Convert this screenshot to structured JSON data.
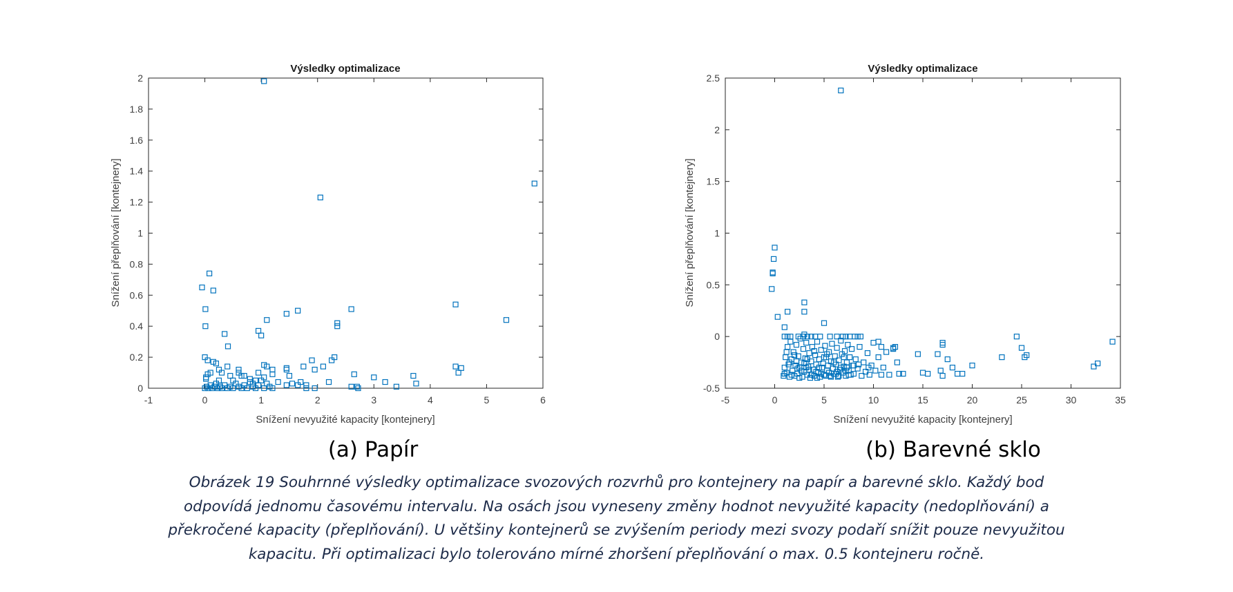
{
  "marker_color": "#0072BD",
  "chart_data": [
    {
      "type": "scatter",
      "title": "Výsledky optimalizace",
      "xlabel": "Snížení nevyužité kapacity [kontejnery]",
      "ylabel": "Snížení přeplňování [kontejnery]",
      "xlim": [
        -1,
        6
      ],
      "ylim": [
        0,
        2
      ],
      "xticks": [
        "-1",
        "0",
        "1",
        "2",
        "3",
        "4",
        "5",
        "6"
      ],
      "yticks": [
        "0",
        "0.2",
        "0.4",
        "0.6",
        "0.8",
        "1",
        "1.2",
        "1.4",
        "1.6",
        "1.8",
        "2"
      ],
      "marker": "square",
      "grid": false,
      "points": [
        [
          1.05,
          1.98
        ],
        [
          2.05,
          1.23
        ],
        [
          5.85,
          1.32
        ],
        [
          -0.05,
          0.65
        ],
        [
          0.08,
          0.74
        ],
        [
          0.15,
          0.63
        ],
        [
          0.01,
          0.51
        ],
        [
          0.01,
          0.4
        ],
        [
          0.35,
          0.35
        ],
        [
          0.41,
          0.27
        ],
        [
          0.95,
          0.37
        ],
        [
          1.0,
          0.34
        ],
        [
          1.1,
          0.44
        ],
        [
          1.45,
          0.48
        ],
        [
          1.65,
          0.5
        ],
        [
          2.35,
          0.42
        ],
        [
          2.35,
          0.4
        ],
        [
          2.6,
          0.51
        ],
        [
          4.45,
          0.54
        ],
        [
          5.35,
          0.44
        ],
        [
          0,
          0.2
        ],
        [
          0.05,
          0.18
        ],
        [
          0.15,
          0.17
        ],
        [
          0.2,
          0.16
        ],
        [
          0.25,
          0.12
        ],
        [
          0.4,
          0.14
        ],
        [
          0.45,
          0.08
        ],
        [
          0.6,
          0.12
        ],
        [
          0.6,
          0.1
        ],
        [
          0.7,
          0.08
        ],
        [
          0.95,
          0.1
        ],
        [
          1.05,
          0.15
        ],
        [
          1.1,
          0.14
        ],
        [
          1.2,
          0.12
        ],
        [
          1.2,
          0.09
        ],
        [
          1.45,
          0.13
        ],
        [
          1.45,
          0.12
        ],
        [
          1.5,
          0.08
        ],
        [
          1.75,
          0.14
        ],
        [
          1.9,
          0.18
        ],
        [
          1.95,
          0.12
        ],
        [
          2.1,
          0.14
        ],
        [
          2.25,
          0.18
        ],
        [
          2.3,
          0.2
        ],
        [
          2.2,
          0.04
        ],
        [
          2.65,
          0.09
        ],
        [
          2.6,
          0.01
        ],
        [
          2.7,
          0.01
        ],
        [
          2.72,
          0
        ],
        [
          3.0,
          0.07
        ],
        [
          3.2,
          0.04
        ],
        [
          3.4,
          0.01
        ],
        [
          3.7,
          0.08
        ],
        [
          3.75,
          0.03
        ],
        [
          4.45,
          0.14
        ],
        [
          4.55,
          0.13
        ],
        [
          4.5,
          0.1
        ],
        [
          0,
          0
        ],
        [
          0.03,
          0.01
        ],
        [
          0.06,
          0
        ],
        [
          0.1,
          0.02
        ],
        [
          0.13,
          0
        ],
        [
          0.17,
          0.01
        ],
        [
          0.2,
          0.03
        ],
        [
          0.23,
          0
        ],
        [
          0.27,
          0.01
        ],
        [
          0.3,
          0
        ],
        [
          0.35,
          0.02
        ],
        [
          0.4,
          0
        ],
        [
          0.45,
          0.01
        ],
        [
          0.5,
          0
        ],
        [
          0.55,
          0.03
        ],
        [
          0.6,
          0.01
        ],
        [
          0.65,
          0
        ],
        [
          0.7,
          0.02
        ],
        [
          0.75,
          0
        ],
        [
          0.8,
          0.04
        ],
        [
          0.85,
          0.01
        ],
        [
          0.9,
          0
        ],
        [
          0.95,
          0.02
        ],
        [
          1,
          0.05
        ],
        [
          1.05,
          0
        ],
        [
          1.1,
          0.03
        ],
        [
          1.15,
          0.01
        ],
        [
          1.2,
          0
        ],
        [
          1.3,
          0.04
        ],
        [
          1.45,
          0.02
        ],
        [
          1.55,
          0.03
        ],
        [
          1.65,
          0.02
        ],
        [
          1.7,
          0.04
        ],
        [
          1.8,
          0
        ],
        [
          1.8,
          0.02
        ],
        [
          1.95,
          0
        ],
        [
          0.02,
          0.06
        ],
        [
          0.05,
          0.09
        ],
        [
          0.1,
          0.1
        ],
        [
          0.02,
          0.07
        ],
        [
          0.3,
          0.1
        ],
        [
          0.5,
          0.05
        ],
        [
          0.8,
          0.06
        ],
        [
          0.9,
          0.05
        ],
        [
          1.05,
          0.07
        ],
        [
          0.25,
          0.05
        ],
        [
          0.65,
          0.08
        ],
        [
          0.85,
          0.03
        ]
      ]
    },
    {
      "type": "scatter",
      "title": "Výsledky optimalizace",
      "xlabel": "Snížení nevyužité kapacity [kontejnery]",
      "ylabel": "Snížení přeplňování [kontejnery]",
      "xlim": [
        -5,
        35
      ],
      "ylim": [
        -0.5,
        2.5
      ],
      "xticks": [
        "-5",
        "0",
        "5",
        "10",
        "15",
        "20",
        "25",
        "30",
        "35"
      ],
      "yticks": [
        "-0.5",
        "0",
        "0.5",
        "1",
        "1.5",
        "2",
        "2.5"
      ],
      "marker": "square",
      "grid": false,
      "points": [
        [
          6.7,
          2.38
        ],
        [
          0,
          0.86
        ],
        [
          -0.1,
          0.75
        ],
        [
          -0.2,
          0.62
        ],
        [
          -0.2,
          0.61
        ],
        [
          -0.3,
          0.46
        ],
        [
          0.3,
          0.19
        ],
        [
          1.3,
          0.24
        ],
        [
          3,
          0.33
        ],
        [
          3,
          0.24
        ],
        [
          5,
          0.13
        ],
        [
          1,
          0.09
        ],
        [
          0.9,
          -0.38
        ],
        [
          1,
          -0.3
        ],
        [
          1.1,
          -0.2
        ],
        [
          1.2,
          -0.35
        ],
        [
          1.3,
          -0.1
        ],
        [
          1.4,
          -0.27
        ],
        [
          1.5,
          -0.39
        ],
        [
          1.6,
          -0.05
        ],
        [
          1.7,
          -0.22
        ],
        [
          1.8,
          -0.33
        ],
        [
          1.9,
          -0.15
        ],
        [
          2,
          -0.38
        ],
        [
          2.1,
          -0.28
        ],
        [
          2.2,
          -0.08
        ],
        [
          2.3,
          -0.36
        ],
        [
          2.4,
          -0.19
        ],
        [
          2.5,
          -0.3
        ],
        [
          2.6,
          -0.02
        ],
        [
          2.7,
          -0.25
        ],
        [
          2.8,
          -0.39
        ],
        [
          2.9,
          -0.12
        ],
        [
          3,
          -0.34
        ],
        [
          3.1,
          -0.21
        ],
        [
          3.2,
          -0.06
        ],
        [
          3.3,
          -0.37
        ],
        [
          3.4,
          -0.29
        ],
        [
          3.5,
          -0.16
        ],
        [
          3.6,
          -0.4
        ],
        [
          3.7,
          -0.24
        ],
        [
          3.8,
          -0.1
        ],
        [
          3.9,
          -0.32
        ],
        [
          4,
          -0.38
        ],
        [
          4.1,
          -0.18
        ],
        [
          4.2,
          -0.27
        ],
        [
          4.3,
          -0.05
        ],
        [
          4.4,
          -0.35
        ],
        [
          4.5,
          -0.22
        ],
        [
          4.6,
          -0.39
        ],
        [
          4.7,
          -0.13
        ],
        [
          4.8,
          -0.3
        ],
        [
          4.9,
          -0.26
        ],
        [
          5,
          -0.37
        ],
        [
          5.1,
          -0.09
        ],
        [
          5.2,
          -0.2
        ],
        [
          5.3,
          -0.33
        ],
        [
          5.4,
          -0.28
        ],
        [
          5.5,
          -0.15
        ],
        [
          5.6,
          -0.38
        ],
        [
          5.7,
          -0.24
        ],
        [
          5.8,
          -0.07
        ],
        [
          5.9,
          -0.31
        ],
        [
          6,
          -0.36
        ],
        [
          6.1,
          -0.19
        ],
        [
          6.2,
          -0.27
        ],
        [
          6.3,
          -0.11
        ],
        [
          6.4,
          -0.39
        ],
        [
          6.5,
          -0.23
        ],
        [
          6.6,
          -0.32
        ],
        [
          6.7,
          -0.04
        ],
        [
          6.8,
          -0.17
        ],
        [
          6.9,
          -0.35
        ],
        [
          7,
          -0.29
        ],
        [
          7.1,
          -0.14
        ],
        [
          7.2,
          -0.38
        ],
        [
          7.3,
          -0.25
        ],
        [
          7.4,
          -0.08
        ],
        [
          7.5,
          -0.33
        ],
        [
          7.6,
          -0.2
        ],
        [
          7.7,
          -0.37
        ],
        [
          7.8,
          -0.12
        ],
        [
          7.9,
          -0.28
        ],
        [
          8,
          -0.36
        ],
        [
          8.2,
          -0.22
        ],
        [
          8.4,
          -0.31
        ],
        [
          8.6,
          -0.1
        ],
        [
          8.8,
          -0.38
        ],
        [
          9,
          -0.25
        ],
        [
          9.2,
          -0.34
        ],
        [
          9.4,
          -0.16
        ],
        [
          9.6,
          -0.37
        ],
        [
          9.8,
          -0.28
        ],
        [
          10,
          -0.06
        ],
        [
          10.2,
          -0.33
        ],
        [
          10.5,
          -0.2
        ],
        [
          10.8,
          -0.37
        ],
        [
          11,
          -0.3
        ],
        [
          11.3,
          -0.15
        ],
        [
          11.6,
          -0.37
        ],
        [
          12,
          -0.12
        ],
        [
          12.2,
          -0.1
        ],
        [
          12.4,
          -0.25
        ],
        [
          12.6,
          -0.36
        ],
        [
          13,
          -0.36
        ],
        [
          1,
          -0.36
        ],
        [
          1.5,
          -0.25
        ],
        [
          2,
          -0.18
        ],
        [
          2.5,
          -0.4
        ],
        [
          3,
          -0.26
        ],
        [
          3.5,
          -0.32
        ],
        [
          4,
          -0.14
        ],
        [
          4.5,
          -0.3
        ],
        [
          5,
          -0.2
        ],
        [
          5.5,
          -0.35
        ],
        [
          6,
          -0.25
        ],
        [
          6.5,
          -0.38
        ],
        [
          7,
          -0.2
        ],
        [
          7.5,
          -0.37
        ],
        [
          8,
          -0.28
        ],
        [
          2.3,
          -0.31
        ],
        [
          3.3,
          -0.22
        ],
        [
          4.3,
          -0.4
        ],
        [
          5.3,
          -0.17
        ],
        [
          6.3,
          -0.34
        ],
        [
          7.3,
          -0.3
        ],
        [
          1.7,
          -0.37
        ],
        [
          2.7,
          -0.33
        ],
        [
          3.7,
          -0.37
        ],
        [
          4.7,
          -0.36
        ],
        [
          5.7,
          -0.39
        ],
        [
          6.7,
          -0.3
        ],
        [
          8.5,
          -0.27
        ],
        [
          9.5,
          -0.3
        ],
        [
          1.2,
          -0.15
        ],
        [
          2.2,
          -0.24
        ],
        [
          3.2,
          -0.3
        ],
        [
          4.2,
          -0.34
        ],
        [
          5.2,
          -0.38
        ],
        [
          6.2,
          -0.36
        ],
        [
          7.2,
          -0.33
        ],
        [
          1,
          0
        ],
        [
          1.3,
          0
        ],
        [
          1.6,
          0
        ],
        [
          2.4,
          0
        ],
        [
          2.9,
          0
        ],
        [
          3.3,
          0
        ],
        [
          3.7,
          0
        ],
        [
          4.1,
          0
        ],
        [
          4.6,
          0
        ],
        [
          5.6,
          0
        ],
        [
          6.3,
          0
        ],
        [
          6.9,
          0
        ],
        [
          7.2,
          0
        ],
        [
          7.6,
          0
        ],
        [
          8.1,
          0
        ],
        [
          8.4,
          0
        ],
        [
          8.7,
          0
        ],
        [
          3,
          0.02
        ],
        [
          10.5,
          -0.05
        ],
        [
          10.8,
          -0.1
        ],
        [
          12,
          -0.11
        ],
        [
          14.5,
          -0.17
        ],
        [
          15,
          -0.35
        ],
        [
          15.5,
          -0.36
        ],
        [
          16.5,
          -0.17
        ],
        [
          17,
          -0.06
        ],
        [
          17,
          -0.08
        ],
        [
          16.8,
          -0.33
        ],
        [
          17,
          -0.38
        ],
        [
          17.5,
          -0.22
        ],
        [
          18,
          -0.3
        ],
        [
          18.5,
          -0.36
        ],
        [
          19,
          -0.36
        ],
        [
          20,
          -0.28
        ],
        [
          23,
          -0.2
        ],
        [
          24.5,
          0
        ],
        [
          25,
          -0.11
        ],
        [
          25.3,
          -0.2
        ],
        [
          25.5,
          -0.18
        ],
        [
          32.3,
          -0.29
        ],
        [
          32.7,
          -0.26
        ],
        [
          34.2,
          -0.05
        ]
      ]
    }
  ],
  "subcaptions": [
    "(a)  Papír",
    "(b)  Barevné sklo"
  ],
  "caption_lines": [
    "Obrázek 19 Souhrnné výsledky optimalizace svozových rozvrhů pro kontejnery na papír a barevné sklo. Každý bod",
    "odpovídá jednomu časovému intervalu. Na osách jsou vyneseny změny hodnot nevyužité kapacity (nedoplňování) a",
    "překročené kapacity (přeplňování). U většiny kontejnerů se zvýšením periody mezi svozy podaří snížit pouze nevyužitou",
    "kapacitu. Při optimalizaci bylo tolerováno mírné zhoršení přeplňování o max. 0.5 kontejneru ročně."
  ]
}
